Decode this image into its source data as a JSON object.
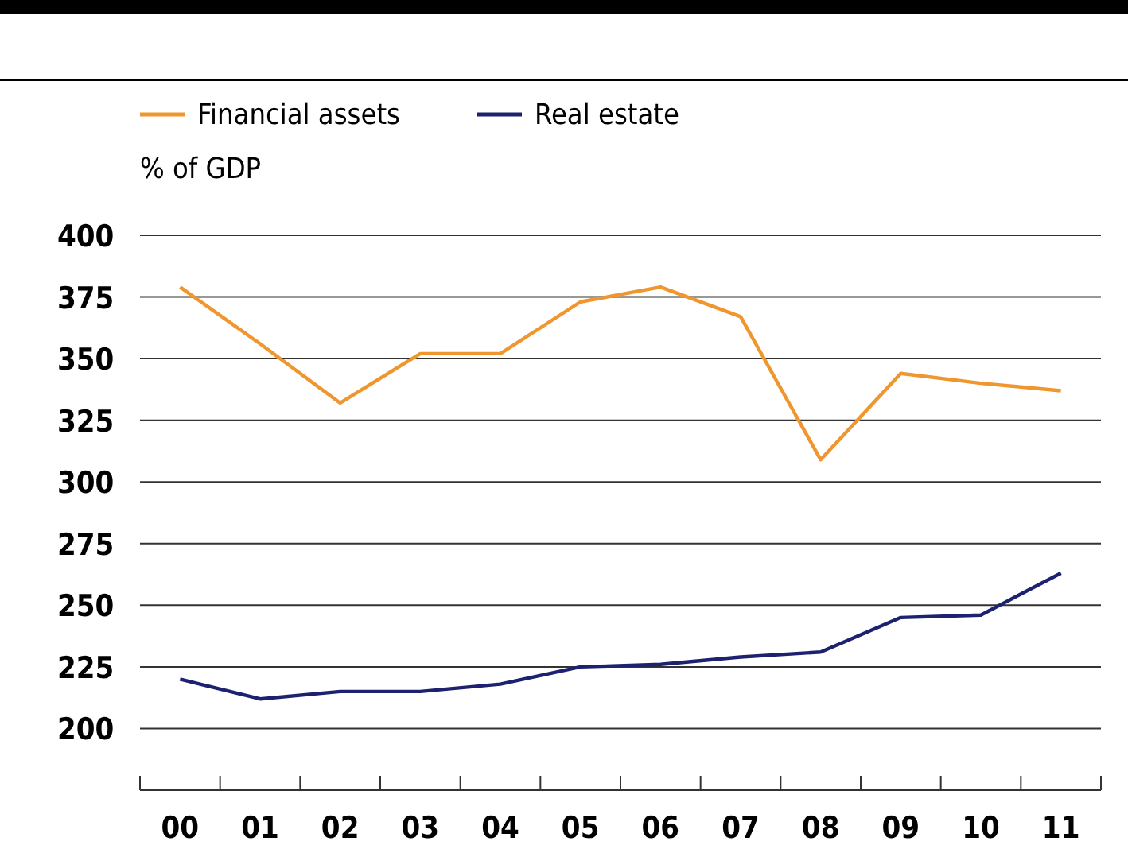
{
  "chart_data": {
    "type": "line",
    "ylabel": "% of GDP",
    "categories": [
      "00",
      "01",
      "02",
      "03",
      "04",
      "05",
      "06",
      "07",
      "08",
      "09",
      "10",
      "11"
    ],
    "series": [
      {
        "name": "Financial assets",
        "color": "#f0962e",
        "values": [
          379,
          356,
          332,
          352,
          352,
          373,
          379,
          367,
          309,
          344,
          340,
          337
        ]
      },
      {
        "name": "Real estate",
        "color": "#1c2270",
        "values": [
          220,
          212,
          215,
          215,
          218,
          225,
          226,
          229,
          231,
          245,
          246,
          263
        ]
      }
    ],
    "ylim": [
      175,
      400
    ],
    "yticks": [
      200,
      225,
      250,
      275,
      300,
      325,
      350,
      375,
      400
    ],
    "grid": "y",
    "legend": "top left",
    "marker": "none",
    "line_style": "solid"
  }
}
